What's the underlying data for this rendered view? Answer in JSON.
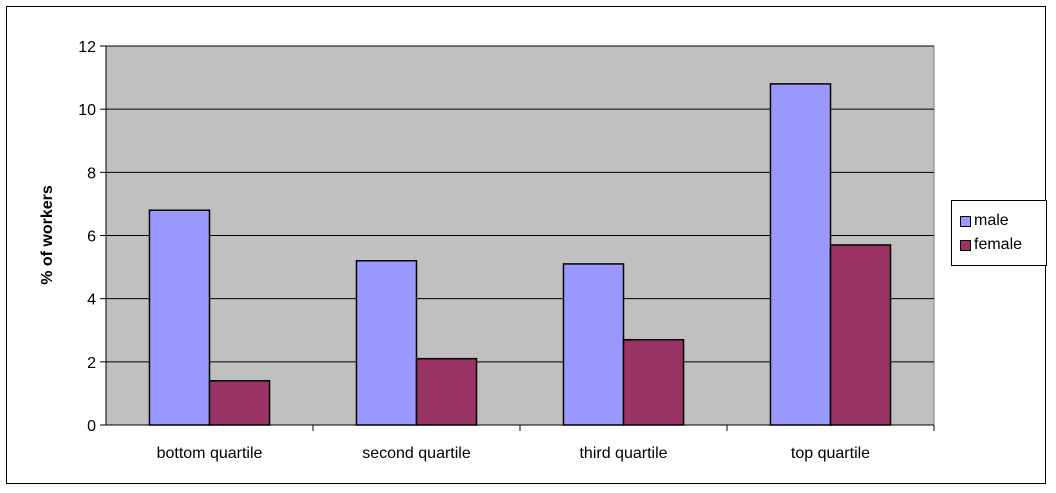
{
  "chart_data": {
    "type": "bar",
    "title": "",
    "xlabel": "",
    "ylabel": "% of workers",
    "categories": [
      "bottom quartile",
      "second quartile",
      "third quartile",
      "top quartile"
    ],
    "series": [
      {
        "name": "male",
        "color": "#9999ff",
        "values": [
          6.8,
          5.2,
          5.1,
          10.8
        ]
      },
      {
        "name": "female",
        "color": "#993366",
        "values": [
          1.4,
          2.1,
          2.7,
          5.7
        ]
      }
    ],
    "ylim": [
      0,
      12
    ],
    "yticks": [
      0,
      2,
      4,
      6,
      8,
      10,
      12
    ],
    "grid": true,
    "plot_background": "#c0c0c0",
    "legend": "right"
  }
}
